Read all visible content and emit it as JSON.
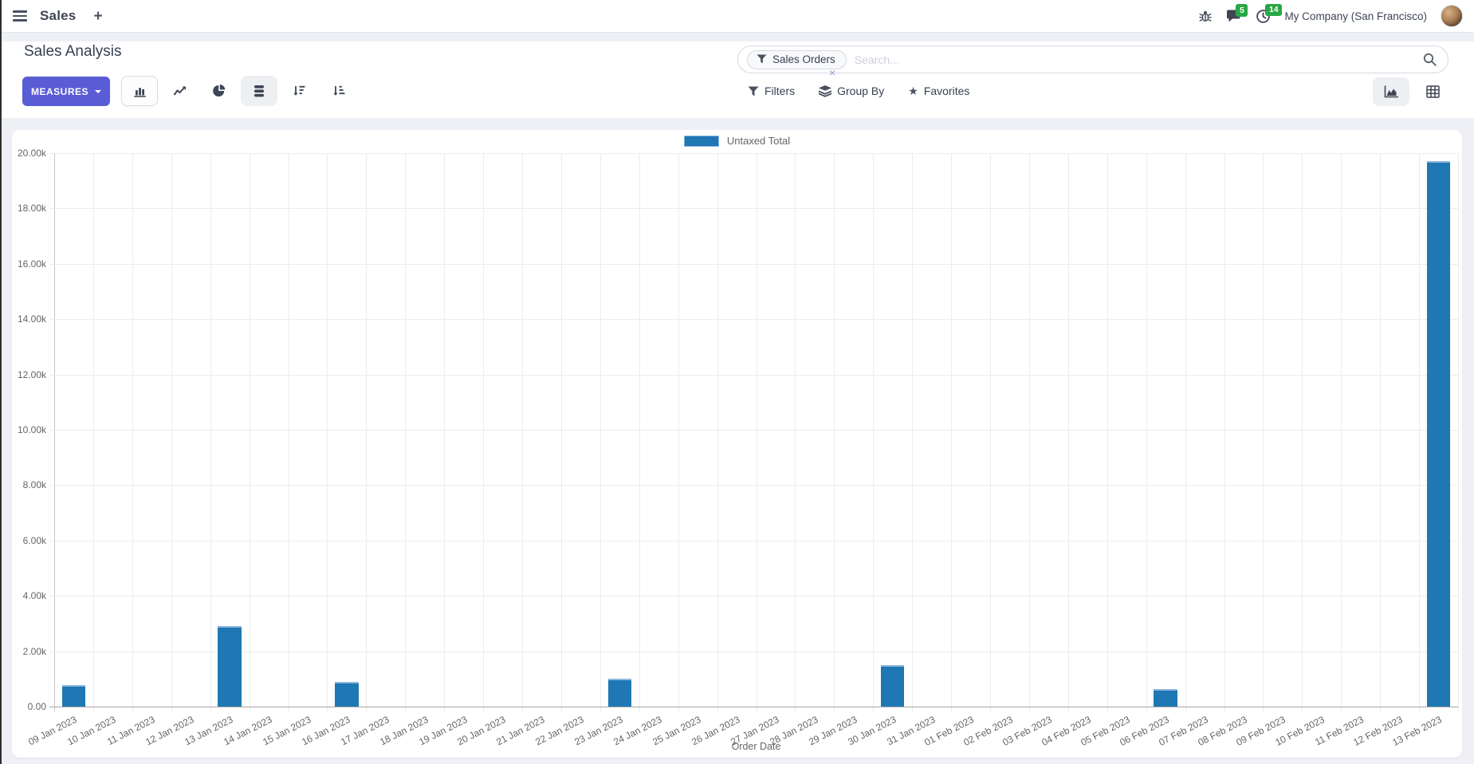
{
  "navbar": {
    "app_name": "Sales",
    "plus_label": "+",
    "message_badge": "5",
    "activity_badge": "14",
    "company": "My Company (San Francisco)"
  },
  "control_panel": {
    "title": "Sales Analysis",
    "measures_label": "MEASURES",
    "search": {
      "facet": "Sales Orders",
      "facet_remove": "×",
      "placeholder": "Search..."
    },
    "menus": {
      "filters": "Filters",
      "group_by": "Group By",
      "favorites": "Favorites"
    }
  },
  "icons": {
    "left_toolbar": [
      "bar-chart-icon",
      "line-chart-icon",
      "pie-chart-icon",
      "stacked-icon",
      "sort-descending-icon",
      "sort-ascending-icon"
    ],
    "view_switchers": [
      "graph-view-icon",
      "pivot-view-icon"
    ]
  },
  "colors": {
    "primary": "#5a5cd6",
    "bar": "#1f77b4",
    "badge": "#28a745"
  },
  "chart_data": {
    "type": "bar",
    "title": "",
    "xlabel": "Order Date",
    "ylabel": "",
    "ylim": [
      0,
      20000
    ],
    "ytick_step": 2000,
    "grid": true,
    "legend_position": "top",
    "legend": [
      {
        "label": "Untaxed Total",
        "color": "#1f77b4"
      }
    ],
    "categories": [
      "09 Jan 2023",
      "10 Jan 2023",
      "11 Jan 2023",
      "12 Jan 2023",
      "13 Jan 2023",
      "14 Jan 2023",
      "15 Jan 2023",
      "16 Jan 2023",
      "17 Jan 2023",
      "18 Jan 2023",
      "19 Jan 2023",
      "20 Jan 2023",
      "21 Jan 2023",
      "22 Jan 2023",
      "23 Jan 2023",
      "24 Jan 2023",
      "25 Jan 2023",
      "26 Jan 2023",
      "27 Jan 2023",
      "28 Jan 2023",
      "29 Jan 2023",
      "30 Jan 2023",
      "31 Jan 2023",
      "01 Feb 2023",
      "02 Feb 2023",
      "03 Feb 2023",
      "04 Feb 2023",
      "05 Feb 2023",
      "06 Feb 2023",
      "07 Feb 2023",
      "08 Feb 2023",
      "09 Feb 2023",
      "10 Feb 2023",
      "11 Feb 2023",
      "12 Feb 2023",
      "13 Feb 2023"
    ],
    "series": [
      {
        "name": "Untaxed Total",
        "color": "#1f77b4",
        "values": [
          780,
          0,
          0,
          0,
          2920,
          0,
          0,
          890,
          0,
          0,
          0,
          0,
          0,
          0,
          1010,
          0,
          0,
          0,
          0,
          0,
          0,
          1500,
          0,
          0,
          0,
          0,
          0,
          0,
          630,
          0,
          0,
          0,
          0,
          0,
          0,
          19700
        ]
      }
    ]
  }
}
